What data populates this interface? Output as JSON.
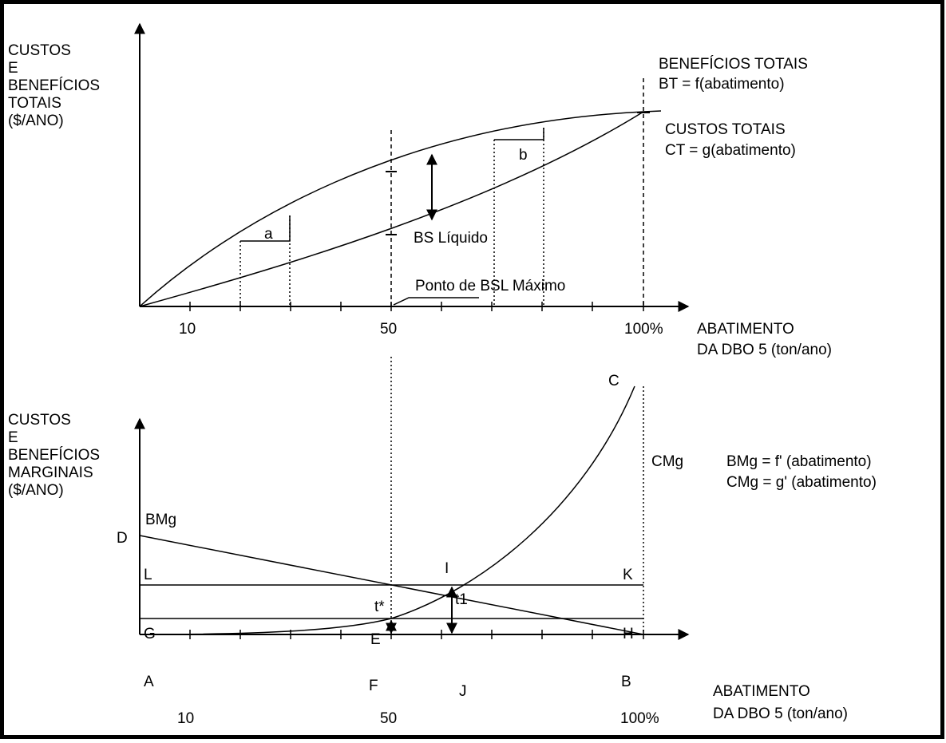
{
  "top_chart": {
    "y_label_lines": [
      "CUSTOS",
      "E",
      "BENEFÍCIOS",
      "TOTAIS",
      "($/ANO)"
    ],
    "x_label_lines": [
      "ABATIMENTO",
      "DA DBO 5 (ton/ano)"
    ],
    "x_ticks": {
      "t10": "10",
      "t50": "50",
      "t100": "100%"
    },
    "bt_label_lines": [
      "BENEFÍCIOS TOTAIS",
      "BT = f(abatimento)"
    ],
    "ct_label_lines": [
      "CUSTOS TOTAIS",
      "CT = g(abatimento)"
    ],
    "triangle_a": "a",
    "triangle_b": "b",
    "net_benefit_label": "BS Líquido",
    "max_point_label": "Ponto de BSL Máximo"
  },
  "bottom_chart": {
    "y_label_lines": [
      "CUSTOS",
      "E",
      "BENEFÍCIOS",
      "MARGINAIS",
      "($/ANO)"
    ],
    "x_label_lines": [
      "ABATIMENTO",
      "DA DBO 5 (ton/ano)"
    ],
    "x_ticks": {
      "t10": "10",
      "t50": "50",
      "t100": "100%"
    },
    "bmg_curve_label": "BMg",
    "cmg_curve_label": "CMg",
    "formula_lines": [
      "BMg = f' (abatimento)",
      "CMg = g' (abatimento)"
    ],
    "points": {
      "A": "A",
      "B": "B",
      "C": "C",
      "D": "D",
      "E": "E",
      "F": "F",
      "G": "G",
      "H": "H",
      "I": "I",
      "J": "J",
      "K": "K",
      "L": "L",
      "t_star": "t*",
      "t1": "t1"
    }
  }
}
